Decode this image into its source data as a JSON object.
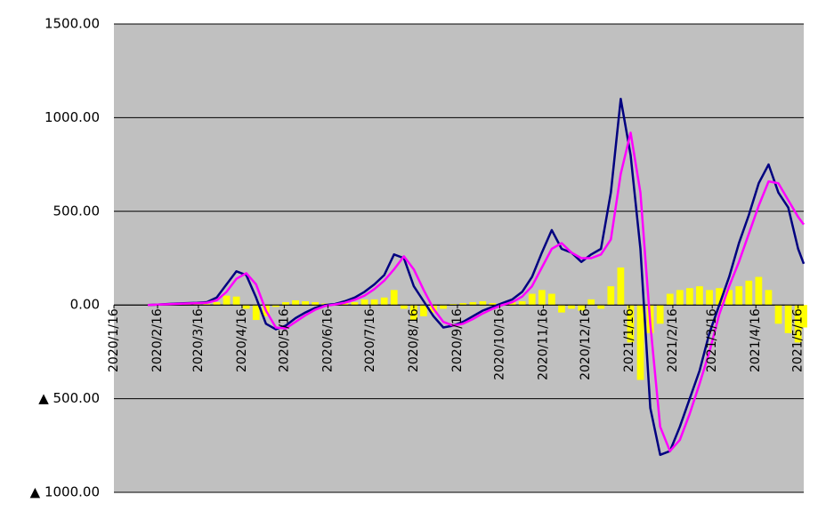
{
  "chart_data": {
    "type": "line",
    "x": [
      "2020/2/9",
      "2020/2/16",
      "2020/2/23",
      "2020/3/1",
      "2020/3/8",
      "2020/3/15",
      "2020/3/22",
      "2020/3/29",
      "2020/4/5",
      "2020/4/12",
      "2020/4/19",
      "2020/4/26",
      "2020/5/3",
      "2020/5/10",
      "2020/5/17",
      "2020/5/24",
      "2020/5/31",
      "2020/6/7",
      "2020/6/14",
      "2020/6/21",
      "2020/6/28",
      "2020/7/5",
      "2020/7/12",
      "2020/7/19",
      "2020/7/26",
      "2020/8/2",
      "2020/8/9",
      "2020/8/16",
      "2020/8/23",
      "2020/8/30",
      "2020/9/6",
      "2020/9/13",
      "2020/9/20",
      "2020/9/27",
      "2020/10/4",
      "2020/10/11",
      "2020/10/18",
      "2020/10/25",
      "2020/11/1",
      "2020/11/8",
      "2020/11/15",
      "2020/11/22",
      "2020/11/29",
      "2020/12/6",
      "2020/12/13",
      "2020/12/20",
      "2020/12/27",
      "2021/1/3",
      "2021/1/10",
      "2021/1/17",
      "2021/1/24",
      "2021/1/31",
      "2021/2/7",
      "2021/2/14",
      "2021/2/21",
      "2021/2/28",
      "2021/3/7",
      "2021/3/14",
      "2021/3/21",
      "2021/3/28",
      "2021/4/4",
      "2021/4/11",
      "2021/4/18",
      "2021/4/25",
      "2021/5/2",
      "2021/5/9",
      "2021/5/16",
      "2021/5/20"
    ],
    "series": [
      {
        "kind": "bar",
        "color": "#ffff00",
        "values": [
          0,
          0,
          2,
          3,
          3,
          3,
          5,
          15,
          50,
          45,
          -20,
          -80,
          -60,
          -10,
          15,
          25,
          20,
          15,
          8,
          3,
          10,
          15,
          30,
          30,
          40,
          80,
          -20,
          -80,
          -60,
          -40,
          -20,
          5,
          10,
          15,
          20,
          10,
          10,
          15,
          20,
          60,
          80,
          60,
          -40,
          -20,
          -30,
          30,
          -20,
          100,
          200,
          -200,
          -400,
          -150,
          -100,
          60,
          80,
          90,
          100,
          80,
          90,
          80,
          100,
          130,
          150,
          80,
          -100,
          -150,
          -200,
          -120
        ]
      },
      {
        "kind": "line",
        "color": "#000080",
        "values": [
          0,
          2,
          5,
          8,
          10,
          12,
          15,
          40,
          110,
          180,
          160,
          40,
          -100,
          -130,
          -110,
          -70,
          -40,
          -15,
          0,
          5,
          20,
          40,
          70,
          110,
          160,
          270,
          250,
          100,
          20,
          -60,
          -120,
          -110,
          -90,
          -60,
          -30,
          -10,
          10,
          30,
          70,
          150,
          280,
          400,
          300,
          280,
          230,
          270,
          300,
          600,
          1100,
          800,
          300,
          -550,
          -800,
          -780,
          -650,
          -500,
          -350,
          -150,
          0,
          150,
          330,
          480,
          650,
          750,
          600,
          520,
          300,
          220
        ]
      },
      {
        "kind": "line",
        "color": "#ff00ff",
        "values": [
          0,
          2,
          4,
          6,
          8,
          10,
          12,
          25,
          70,
          140,
          170,
          110,
          -30,
          -120,
          -125,
          -90,
          -55,
          -25,
          -5,
          3,
          12,
          28,
          50,
          85,
          130,
          190,
          260,
          190,
          80,
          -20,
          -90,
          -110,
          -100,
          -75,
          -45,
          -20,
          0,
          15,
          45,
          100,
          200,
          300,
          330,
          280,
          250,
          250,
          270,
          350,
          700,
          920,
          600,
          -100,
          -650,
          -780,
          -720,
          -580,
          -420,
          -250,
          -50,
          100,
          230,
          380,
          530,
          660,
          650,
          560,
          470,
          430
        ]
      }
    ],
    "xlim": [
      "2020/1/16",
      "2021/5/20"
    ],
    "xticks": [
      "2020/1/16",
      "2020/2/16",
      "2020/3/16",
      "2020/4/16",
      "2020/5/16",
      "2020/6/16",
      "2020/7/16",
      "2020/8/16",
      "2020/9/16",
      "2020/10/16",
      "2020/11/16",
      "2020/12/16",
      "2021/1/16",
      "2021/2/16",
      "2021/3/16",
      "2021/4/16",
      "2021/5/16"
    ],
    "ylim": [
      -1000,
      1500
    ],
    "yticks": [
      {
        "value": -1000,
        "label": "▲ 1000.00"
      },
      {
        "value": -500,
        "label": "▲ 500.00"
      },
      {
        "value": 0,
        "label": "0.00"
      },
      {
        "value": 500,
        "label": "500.00"
      },
      {
        "value": 1000,
        "label": "1000.00"
      },
      {
        "value": 1500,
        "label": "1500.00"
      }
    ],
    "grid": true,
    "plot_background": "#c0c0c0"
  }
}
